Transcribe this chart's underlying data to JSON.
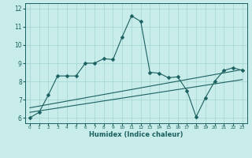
{
  "xlabel": "Humidex (Indice chaleur)",
  "xlim": [
    -0.5,
    23.5
  ],
  "ylim": [
    5.7,
    12.3
  ],
  "yticks": [
    6,
    7,
    8,
    9,
    10,
    11,
    12
  ],
  "xticks": [
    0,
    1,
    2,
    3,
    4,
    5,
    6,
    7,
    8,
    9,
    10,
    11,
    12,
    13,
    14,
    15,
    16,
    17,
    18,
    19,
    20,
    21,
    22,
    23
  ],
  "bg_color": "#c8ece9",
  "grid_color": "#a8d8d4",
  "line_color": "#1a6060",
  "line1_x": [
    0,
    1,
    2,
    3,
    4,
    5,
    6,
    7,
    8,
    9,
    10,
    11,
    12,
    13,
    14,
    15,
    16,
    17,
    18,
    19,
    20,
    21,
    22,
    23
  ],
  "line1_y": [
    6.0,
    6.3,
    7.25,
    8.3,
    8.3,
    8.3,
    9.0,
    9.0,
    9.25,
    9.2,
    10.45,
    11.6,
    11.3,
    8.5,
    8.45,
    8.2,
    8.25,
    7.5,
    6.05,
    7.1,
    8.0,
    8.6,
    8.75,
    8.6
  ],
  "line2_x": [
    0,
    23
  ],
  "line2_y": [
    6.55,
    8.65
  ],
  "line3_x": [
    0,
    23
  ],
  "line3_y": [
    6.3,
    8.1
  ],
  "marker": "D",
  "markersize": 2.5
}
